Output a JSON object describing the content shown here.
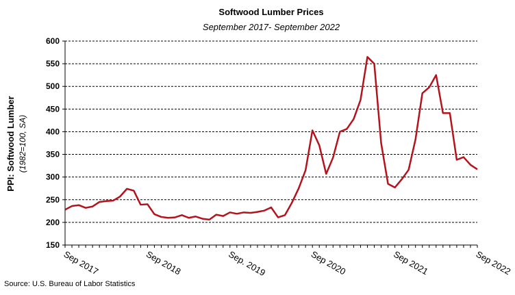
{
  "chart_data": {
    "type": "line",
    "title": "Softwood Lumber Prices",
    "subtitle": "September 2017- September 2022",
    "y_label": "PPI: Softwood Lumber",
    "y_label_sub": "(1982=100, SA)",
    "source": "Source: U.S. Bureau of Labor Statistics",
    "categories": [
      "Sep 2017",
      null,
      null,
      null,
      null,
      null,
      null,
      null,
      null,
      null,
      null,
      null,
      "Sep 2018",
      null,
      null,
      null,
      null,
      null,
      null,
      null,
      null,
      null,
      null,
      null,
      "Sep. 2019",
      null,
      null,
      null,
      null,
      null,
      null,
      null,
      null,
      null,
      null,
      null,
      "Sep 2020",
      null,
      null,
      null,
      null,
      null,
      null,
      null,
      null,
      null,
      null,
      null,
      "Sep 2021",
      null,
      null,
      null,
      null,
      null,
      null,
      null,
      null,
      null,
      null,
      null,
      "Sep 2022"
    ],
    "series": [
      {
        "name": "PPI: Softwood Lumber",
        "color": "#b5121b",
        "values": [
          228,
          236,
          238,
          232,
          235,
          245,
          247,
          248,
          257,
          274,
          270,
          239,
          240,
          218,
          212,
          210,
          211,
          216,
          210,
          213,
          208,
          206,
          217,
          214,
          222,
          219,
          222,
          221,
          223,
          226,
          233,
          211,
          216,
          243,
          275,
          315,
          403,
          370,
          307,
          343,
          400,
          406,
          428,
          470,
          565,
          550,
          375,
          285,
          277,
          295,
          316,
          383,
          485,
          498,
          525,
          441,
          441,
          338,
          344,
          327,
          317
        ]
      }
    ],
    "ylim": [
      150,
      600
    ],
    "yticks": [
      150,
      200,
      250,
      300,
      350,
      400,
      450,
      500,
      550,
      600
    ],
    "grid": true
  }
}
